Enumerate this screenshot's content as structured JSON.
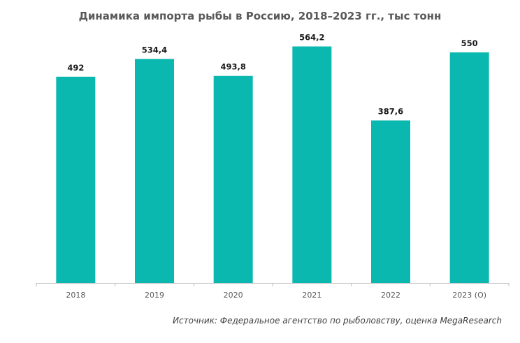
{
  "chart_data": {
    "type": "bar",
    "title": "Динамика импорта рыбы в Россию, 2018–2023 гг., тыс тонн",
    "categories": [
      "2018",
      "2019",
      "2020",
      "2021",
      "2022",
      "2023 (О)"
    ],
    "value_labels": [
      "492",
      "534,4",
      "493,8",
      "564,2",
      "387,6",
      "550"
    ],
    "values": [
      492,
      534.4,
      493.8,
      564.2,
      387.6,
      550
    ],
    "ylim": [
      0,
      600
    ],
    "grid": false,
    "legend": "none",
    "bar_color": "#0ab8b0",
    "source": "Источник: Федеральное агентство по рыболовству, оценка MegaResearch"
  }
}
